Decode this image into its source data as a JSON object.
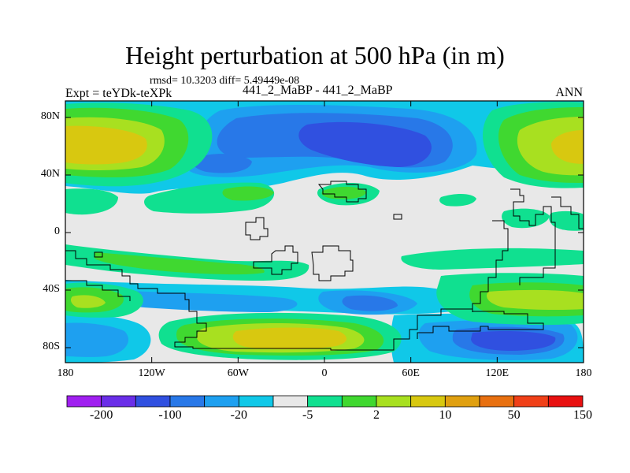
{
  "title": "Height perturbation at 500 hPa (in m)",
  "stats_line": "rmsd= 10.3203 diff= 5.49449e-08",
  "expt_label": "Expt = teYDk-teXPk",
  "runs_label": "441_2_MaBP - 441_2_MaBP",
  "season_label": "ANN",
  "lat_labels": [
    "80N",
    "40N",
    "0",
    "40S",
    "80S"
  ],
  "lon_labels": [
    "180",
    "120W",
    "60W",
    "0",
    "60E",
    "120E",
    "180"
  ],
  "colorbar": {
    "colors": [
      "#a020f0",
      "#6a2ee8",
      "#3050e0",
      "#2878e8",
      "#1ea0f0",
      "#10c8e8",
      "#e8e8e8",
      "#10e090",
      "#40d830",
      "#a8e020",
      "#d8c810",
      "#e0a010",
      "#e87010",
      "#f04018",
      "#e81010"
    ],
    "tick_labels": [
      "-200",
      "-100",
      "-20",
      "-5",
      "2",
      "10",
      "50",
      "150"
    ]
  },
  "palette": {
    "neutral": "#e8e8e8",
    "blue_dark": "#3050e0",
    "blue": "#2878e8",
    "blue_mid": "#1ea0f0",
    "cyan": "#10c8e8",
    "green_aqua": "#10e090",
    "green": "#40d830",
    "yellow_green": "#a8e020",
    "olive": "#d8c810"
  }
}
